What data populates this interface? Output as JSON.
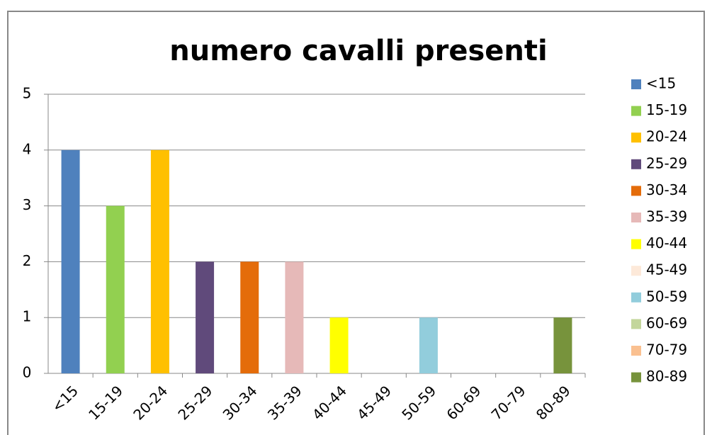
{
  "chart_data": {
    "type": "bar",
    "title": "numero cavalli presenti",
    "categories": [
      "<15",
      "15-19",
      "20-24",
      "25-29",
      "30-34",
      "35-39",
      "40-44",
      "45-49",
      "50-59",
      "60-69",
      "70-79",
      "80-89"
    ],
    "values": [
      4,
      3,
      4,
      2,
      2,
      2,
      1,
      0,
      1,
      0,
      0,
      1
    ],
    "colors": [
      "#4f81bd",
      "#92d050",
      "#ffc000",
      "#604a7b",
      "#e46c0a",
      "#e6b9b8",
      "#ffff00",
      "#fde9d9",
      "#92cddc",
      "#c3d69b",
      "#fac090",
      "#77933c"
    ],
    "ylim": [
      0,
      5
    ],
    "yticks": [
      0,
      1,
      2,
      3,
      4,
      5
    ],
    "grid": true,
    "legend": "right"
  }
}
